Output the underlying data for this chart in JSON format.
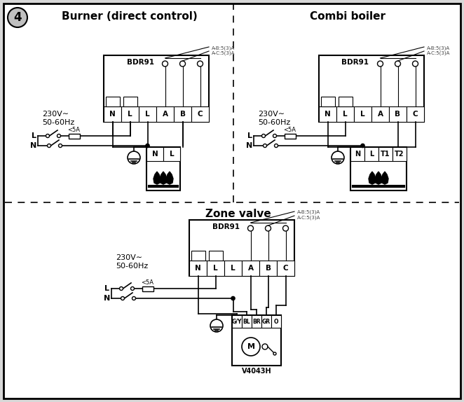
{
  "bg_color": "#d8d8d8",
  "panel_color": "#ffffff",
  "title1": "Burner (direct control)",
  "title2": "Combi boiler",
  "title3": "Zone valve",
  "label_num": "4",
  "bdr_label": "BDR91",
  "voltage_label": "230V∼\n50-60Hz",
  "fuse_label": "<5A",
  "ab_label": "A-B:5(3)A\nA-C:5(3)A",
  "terminals": [
    "N",
    "L",
    "L",
    "A",
    "B",
    "C"
  ],
  "burner_terminals": [
    "N",
    "L"
  ],
  "combi_terminals": [
    "N",
    "L",
    "T1",
    "T2"
  ],
  "zone_terminals": [
    "G/Y",
    "BL",
    "BR",
    "GR",
    "O"
  ],
  "v4043h_label": "V4043H",
  "L_label": "L",
  "N_label": "N"
}
